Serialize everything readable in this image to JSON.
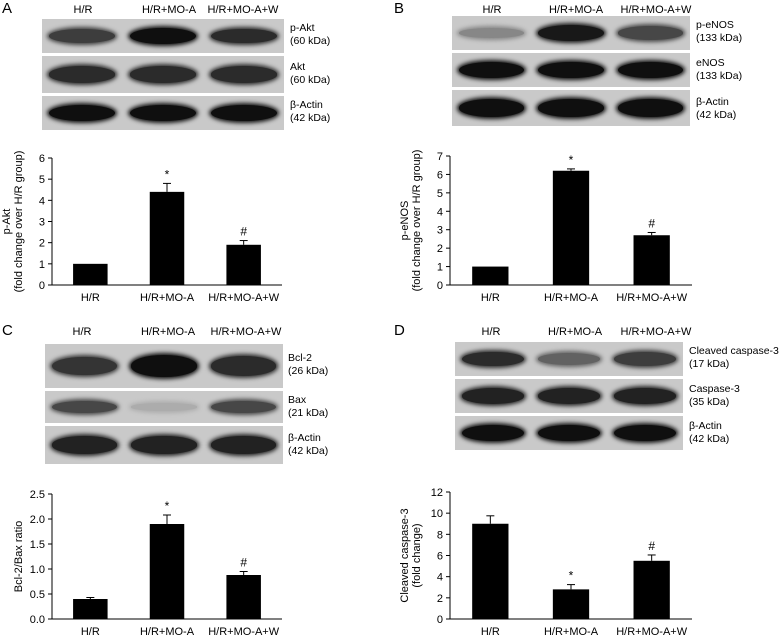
{
  "panels": {
    "a": {
      "letter": "A",
      "lanes": [
        "H/R",
        "H/R+MO-A",
        "H/R+MO-A+W"
      ],
      "blots": [
        {
          "name": "p-Akt",
          "size": "(60 kDa)",
          "intensity": [
            0.75,
            1.0,
            0.85
          ]
        },
        {
          "name": "Akt",
          "size": "(60 kDa)",
          "intensity": [
            0.85,
            0.85,
            0.85
          ]
        },
        {
          "name": "β-Actin",
          "size": "(42 kDa)",
          "intensity": [
            1.0,
            1.0,
            1.0
          ]
        }
      ]
    },
    "b": {
      "letter": "B",
      "lanes": [
        "H/R",
        "H/R+MO-A",
        "H/R+MO-A+W"
      ],
      "blots": [
        {
          "name": "p-eNOS",
          "size": "(133 kDa)",
          "intensity": [
            0.35,
            0.95,
            0.7
          ]
        },
        {
          "name": "eNOS",
          "size": "(133 kDa)",
          "intensity": [
            1.0,
            1.0,
            1.0
          ]
        },
        {
          "name": "β-Actin",
          "size": "(42 kDa)",
          "intensity": [
            1.0,
            1.0,
            1.0
          ]
        }
      ]
    },
    "c": {
      "letter": "C",
      "lanes": [
        "H/R",
        "H/R+MO-A",
        "H/R+MO-A+W"
      ],
      "blots": [
        {
          "name": "Bcl-2",
          "size": "(26 kDa)",
          "intensity": [
            0.8,
            1.0,
            0.85
          ]
        },
        {
          "name": "Bax",
          "size": "(21 kDa)",
          "intensity": [
            0.7,
            0.15,
            0.7
          ]
        },
        {
          "name": "β-Actin",
          "size": "(42 kDa)",
          "intensity": [
            0.9,
            0.9,
            0.9
          ]
        }
      ]
    },
    "d": {
      "letter": "D",
      "lanes": [
        "H/R",
        "H/R+MO-A",
        "H/R+MO-A+W"
      ],
      "blots": [
        {
          "name": "Cleaved caspase-3",
          "size": "(17 kDa)",
          "intensity": [
            0.85,
            0.55,
            0.75
          ]
        },
        {
          "name": "Caspase-3",
          "size": "(35 kDa)",
          "intensity": [
            0.9,
            0.9,
            0.9
          ]
        },
        {
          "name": "β-Actin",
          "size": "(42 kDa)",
          "intensity": [
            1.0,
            1.0,
            1.0
          ]
        }
      ]
    }
  },
  "chart_data": [
    {
      "type": "bar",
      "panel": "A",
      "categories": [
        "H/R",
        "H/R+MO-A",
        "H/R+MO-A+W"
      ],
      "values": [
        1.0,
        4.4,
        1.9
      ],
      "errors": [
        0.0,
        0.4,
        0.2
      ],
      "annotations": [
        "",
        "*",
        "#"
      ],
      "ylabel_lines": [
        "p-Akt",
        "(fold change over H/R group)"
      ],
      "ylim": [
        0,
        6
      ],
      "yticks": [
        0,
        1,
        2,
        3,
        4,
        5,
        6
      ],
      "tick_format": "int"
    },
    {
      "type": "bar",
      "panel": "B",
      "categories": [
        "H/R",
        "H/R+MO-A",
        "H/R+MO-A+W"
      ],
      "values": [
        1.0,
        6.2,
        2.7
      ],
      "errors": [
        0.0,
        0.1,
        0.15
      ],
      "annotations": [
        "",
        "*",
        "#"
      ],
      "ylabel_lines": [
        "p-eNOS",
        "(fold change over H/R group)"
      ],
      "ylim": [
        0,
        7
      ],
      "yticks": [
        0,
        1,
        2,
        3,
        4,
        5,
        6,
        7
      ],
      "tick_format": "int"
    },
    {
      "type": "bar",
      "panel": "C",
      "categories": [
        "H/R",
        "H/R+MO-A",
        "H/R+MO-A+W"
      ],
      "values": [
        0.4,
        1.9,
        0.88
      ],
      "errors": [
        0.03,
        0.18,
        0.07
      ],
      "annotations": [
        "",
        "*",
        "#"
      ],
      "ylabel_lines": [
        "Bcl-2/Bax ratio"
      ],
      "ylim": [
        0,
        2.5
      ],
      "yticks": [
        0,
        0.5,
        1.0,
        1.5,
        2.0,
        2.5
      ],
      "tick_format": "one_decimal"
    },
    {
      "type": "bar",
      "panel": "D",
      "categories": [
        "H/R",
        "H/R+MO-A",
        "H/R+MO-A+W"
      ],
      "values": [
        9.0,
        2.8,
        5.5
      ],
      "errors": [
        0.75,
        0.45,
        0.55
      ],
      "annotations": [
        "",
        "*",
        "#"
      ],
      "ylabel_lines": [
        "Cleaved caspase-3",
        "(fold change)"
      ],
      "ylim": [
        0,
        12
      ],
      "yticks": [
        0,
        2,
        4,
        6,
        8,
        10,
        12
      ],
      "tick_format": "int"
    }
  ]
}
